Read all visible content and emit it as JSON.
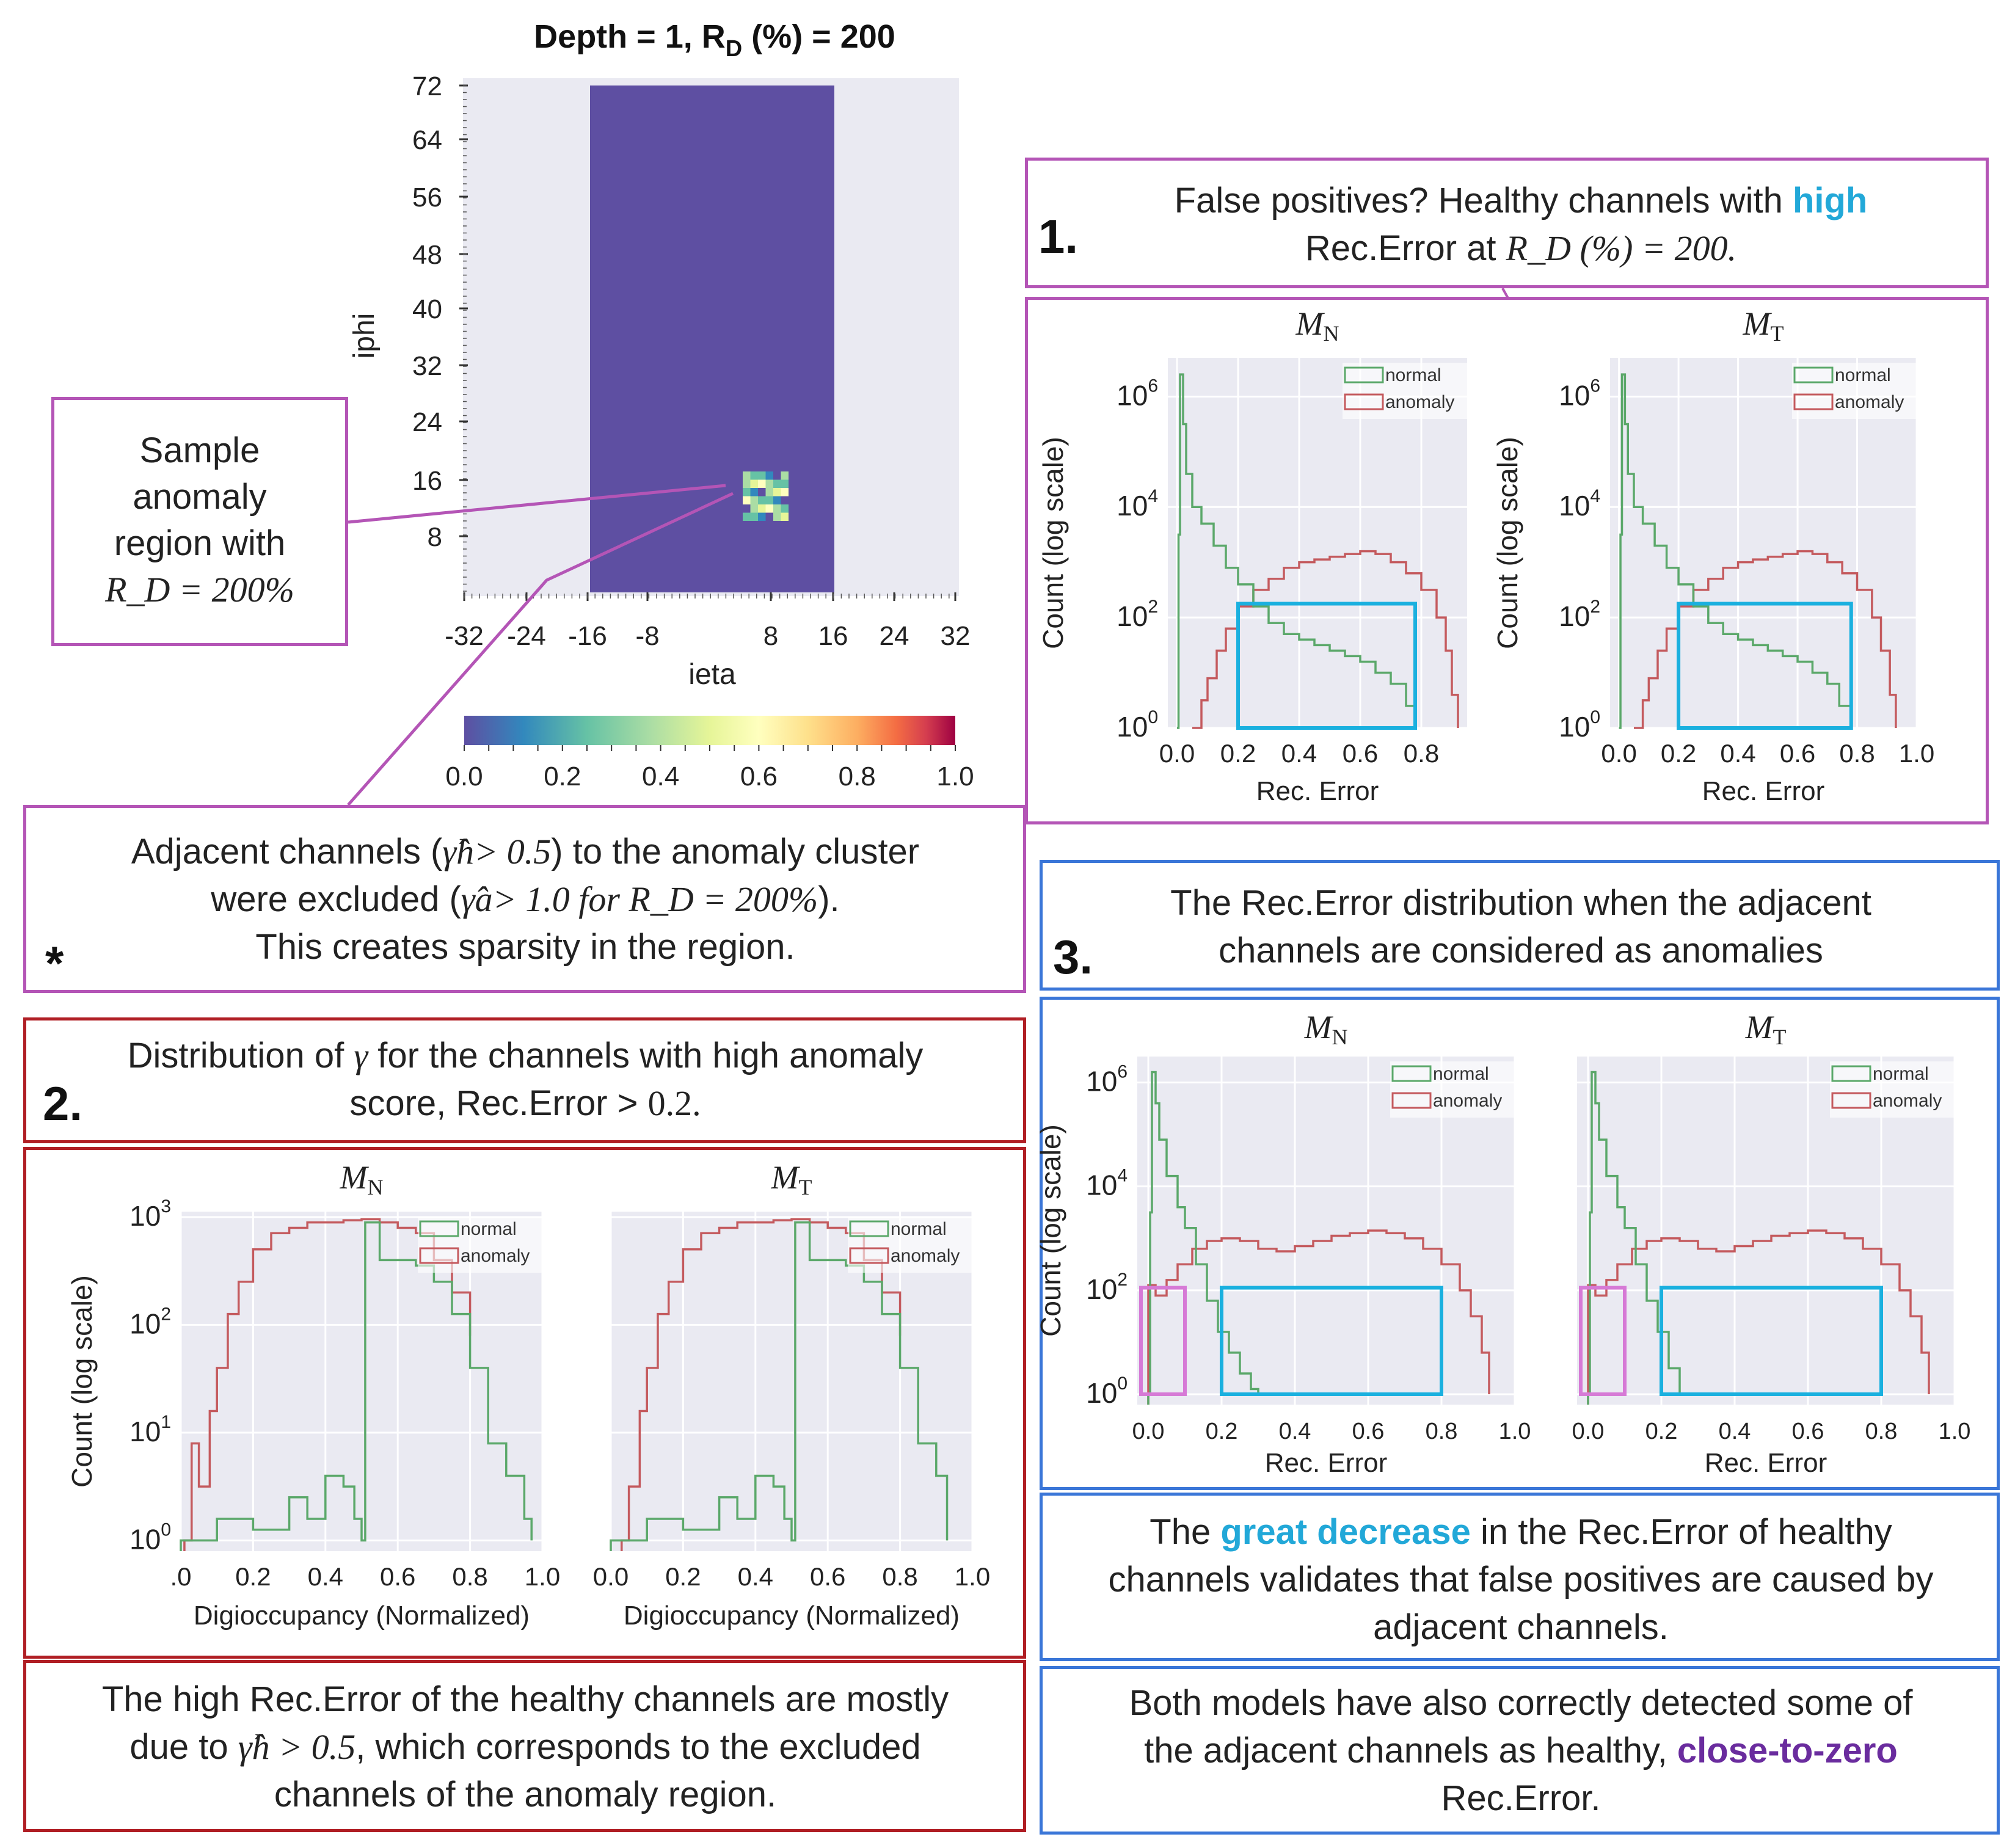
{
  "heatmap": {
    "title": "Depth = 1,  R",
    "title_sub": "D",
    "title_tail": " (%) = 200",
    "ylabel": "iphi",
    "xlabel": "ieta",
    "yticks": [
      "72",
      "64",
      "56",
      "48",
      "40",
      "32",
      "24",
      "16",
      "8"
    ],
    "xticks": [
      "-32",
      "-24",
      "-16",
      "-8",
      "8",
      "16",
      "24",
      "32"
    ],
    "colorbar_ticks": [
      "0.0",
      "0.2",
      "0.4",
      "0.6",
      "0.8",
      "1.0"
    ],
    "fill_color": "#5e4fa2"
  },
  "callout_sample": {
    "line1": "Sample",
    "line2": "anomaly",
    "line3": "region with",
    "line4": "R_D = 200%"
  },
  "note_star": {
    "symbol": "*",
    "line1a": "Adjacent channels (",
    "line1b": "γ̂h> 0.5",
    "line1c": ") to the anomaly cluster",
    "line2a": "were excluded (",
    "line2b": "γ̂a> 1.0 for R_D = 200%",
    "line2c": ").",
    "line3": "This creates sparsity in the region."
  },
  "section1": {
    "number": "1.",
    "line1a": "False positives? Healthy channels with ",
    "line1b": "high",
    "line2a": "Rec.Error at ",
    "line2b": "R_D (%) = 200."
  },
  "section2": {
    "number": "2.",
    "line1a": "Distribution of ",
    "line1b": "γ",
    "line1c": " for the channels with high anomaly",
    "line2a": "score, Rec.Error > ",
    "line2b": "0.2."
  },
  "section3": {
    "number": "3.",
    "line1": "The Rec.Error distribution when the adjacent",
    "line2": "channels are considered as anomalies"
  },
  "conclusion2": {
    "line1": "The high Rec.Error of the healthy channels are mostly",
    "line2a": "due to ",
    "line2b": "γ̂h > 0.5",
    "line2c": ", which corresponds to the excluded",
    "line3": "channels of the anomaly region."
  },
  "conclusion3a": {
    "line1a": "The ",
    "line1b": "great decrease",
    "line1c": " in the Rec.Error of healthy",
    "line2": "channels validates that false positives are caused by",
    "line3": "adjacent channels."
  },
  "conclusion3b": {
    "line1": "Both models have also correctly detected some of",
    "line2a": "the adjacent channels as healthy, ",
    "line2b": "close-to-zero",
    "line3": "Rec.Error."
  },
  "chart_data": [
    {
      "id": "s1N",
      "type": "histogram",
      "title": "M_N",
      "xlabel": "Rec. Error",
      "ylabel": "Count (log scale)",
      "xticks": [
        "0.0",
        "0.2",
        "0.4",
        "0.6",
        "0.8"
      ],
      "yticks": [
        "10^0",
        "10^2",
        "10^4",
        "10^6"
      ],
      "xlim": [
        -0.03,
        0.95
      ],
      "ylog": [
        0,
        6.7
      ],
      "legend": [
        "normal",
        "anomaly"
      ],
      "normal": {
        "x": [
          0.0,
          0.005,
          0.01,
          0.02,
          0.03,
          0.05,
          0.08,
          0.12,
          0.16,
          0.2,
          0.25,
          0.3,
          0.35,
          0.4,
          0.45,
          0.5,
          0.55,
          0.6,
          0.65,
          0.7,
          0.75,
          0.78
        ],
        "y": [
          0,
          3.5,
          6.4,
          5.5,
          4.6,
          4.0,
          3.7,
          3.3,
          2.9,
          2.6,
          2.2,
          1.9,
          1.7,
          1.6,
          1.5,
          1.4,
          1.3,
          1.2,
          1.0,
          0.8,
          0.4,
          0
        ]
      },
      "anomaly": {
        "x": [
          0.05,
          0.08,
          0.1,
          0.13,
          0.16,
          0.2,
          0.25,
          0.3,
          0.35,
          0.4,
          0.45,
          0.5,
          0.55,
          0.6,
          0.65,
          0.7,
          0.75,
          0.8,
          0.85,
          0.88,
          0.9,
          0.92
        ],
        "y": [
          0,
          0.5,
          0.9,
          1.4,
          1.8,
          2.2,
          2.5,
          2.7,
          2.9,
          3.0,
          3.05,
          3.1,
          3.15,
          3.2,
          3.15,
          3.0,
          2.8,
          2.5,
          2.0,
          1.4,
          0.6,
          0
        ]
      },
      "boxes": [
        {
          "x0": 0.2,
          "x1": 0.78,
          "y0": 0,
          "y1": 2.25,
          "color": "#1ab0df"
        }
      ]
    },
    {
      "id": "s1T",
      "type": "histogram",
      "title": "M_T",
      "xlabel": "Rec. Error",
      "ylabel": "Count (log scale)",
      "xticks": [
        "0.0",
        "0.2",
        "0.4",
        "0.6",
        "0.8",
        "1.0"
      ],
      "yticks": [
        "10^0",
        "10^2",
        "10^4",
        "10^6"
      ],
      "xlim": [
        -0.03,
        1.0
      ],
      "ylog": [
        0,
        6.7
      ],
      "legend": [
        "normal",
        "anomaly"
      ],
      "normal": {
        "x": [
          0.0,
          0.005,
          0.01,
          0.02,
          0.03,
          0.05,
          0.08,
          0.12,
          0.16,
          0.2,
          0.25,
          0.3,
          0.35,
          0.4,
          0.45,
          0.5,
          0.55,
          0.6,
          0.65,
          0.7,
          0.74,
          0.78
        ],
        "y": [
          0,
          3.5,
          6.4,
          5.5,
          4.6,
          4.0,
          3.7,
          3.3,
          2.9,
          2.6,
          2.2,
          1.9,
          1.7,
          1.6,
          1.5,
          1.4,
          1.3,
          1.2,
          1.0,
          0.8,
          0.4,
          0
        ]
      },
      "anomaly": {
        "x": [
          0.05,
          0.08,
          0.1,
          0.13,
          0.16,
          0.2,
          0.25,
          0.3,
          0.35,
          0.4,
          0.45,
          0.5,
          0.55,
          0.6,
          0.65,
          0.7,
          0.75,
          0.8,
          0.85,
          0.88,
          0.91,
          0.93
        ],
        "y": [
          0,
          0.5,
          0.9,
          1.4,
          1.8,
          2.2,
          2.5,
          2.7,
          2.9,
          3.0,
          3.05,
          3.1,
          3.15,
          3.2,
          3.15,
          3.0,
          2.8,
          2.5,
          2.0,
          1.4,
          0.6,
          0
        ]
      },
      "boxes": [
        {
          "x0": 0.2,
          "x1": 0.78,
          "y0": 0,
          "y1": 2.25,
          "color": "#1ab0df"
        }
      ]
    },
    {
      "id": "s2N",
      "type": "histogram",
      "title": "M_N",
      "xlabel": "Digioccupancy (Normalized)",
      "ylabel": "Count (log scale)",
      "xticks": [
        ".0",
        "0.2",
        "0.4",
        "0.6",
        "0.8",
        "1.0"
      ],
      "yticks": [
        "10^0",
        "10^1",
        "10^2",
        "10^3"
      ],
      "xlim": [
        0,
        1.0
      ],
      "ylog": [
        -0.1,
        3.05
      ],
      "legend": [
        "normal",
        "anomaly"
      ],
      "normal": {
        "x": [
          0.0,
          0.1,
          0.2,
          0.3,
          0.35,
          0.4,
          0.45,
          0.48,
          0.5,
          0.51,
          0.55,
          0.6,
          0.65,
          0.7,
          0.75,
          0.8,
          0.85,
          0.9,
          0.95,
          0.97
        ],
        "y": [
          0,
          0.2,
          0.1,
          0.4,
          0.2,
          0.6,
          0.5,
          0.2,
          0.0,
          2.95,
          2.6,
          2.6,
          2.55,
          2.4,
          2.1,
          1.6,
          0.9,
          0.6,
          0.2,
          0
        ]
      },
      "anomaly": {
        "x": [
          0.01,
          0.03,
          0.05,
          0.08,
          0.1,
          0.13,
          0.16,
          0.2,
          0.25,
          0.3,
          0.35,
          0.4,
          0.45,
          0.5,
          0.55,
          0.6,
          0.65,
          0.7,
          0.75,
          0.8
        ],
        "y": [
          0,
          0.9,
          0.5,
          1.2,
          1.6,
          2.1,
          2.4,
          2.7,
          2.85,
          2.9,
          2.95,
          2.95,
          2.97,
          2.98,
          2.95,
          2.9,
          2.85,
          2.6,
          2.3,
          1.9
        ]
      }
    },
    {
      "id": "s2T",
      "type": "histogram",
      "title": "M_T",
      "xlabel": "Digioccupancy (Normalized)",
      "ylabel": "",
      "xticks": [
        "0.0",
        "0.2",
        "0.4",
        "0.6",
        "0.8",
        "1.0"
      ],
      "yticks": [],
      "xlim": [
        0,
        1.0
      ],
      "ylog": [
        -0.1,
        3.05
      ],
      "legend": [
        "normal",
        "anomaly"
      ],
      "normal": {
        "x": [
          0.0,
          0.1,
          0.2,
          0.3,
          0.35,
          0.4,
          0.45,
          0.48,
          0.5,
          0.51,
          0.55,
          0.6,
          0.65,
          0.7,
          0.75,
          0.8,
          0.85,
          0.9,
          0.93
        ],
        "y": [
          0,
          0.2,
          0.1,
          0.4,
          0.2,
          0.6,
          0.5,
          0.2,
          0.0,
          2.95,
          2.6,
          2.6,
          2.55,
          2.4,
          2.1,
          1.6,
          0.9,
          0.6,
          0
        ]
      },
      "anomaly": {
        "x": [
          0.03,
          0.05,
          0.08,
          0.1,
          0.13,
          0.16,
          0.2,
          0.25,
          0.3,
          0.35,
          0.4,
          0.45,
          0.5,
          0.55,
          0.6,
          0.65,
          0.7,
          0.75,
          0.8
        ],
        "y": [
          0,
          0.5,
          1.2,
          1.6,
          2.1,
          2.4,
          2.7,
          2.85,
          2.9,
          2.95,
          2.95,
          2.97,
          2.98,
          2.95,
          2.9,
          2.85,
          2.6,
          2.3,
          1.9
        ]
      }
    },
    {
      "id": "s3N",
      "type": "histogram",
      "title": "M_N",
      "xlabel": "Rec. Error",
      "ylabel": "Count (log scale)",
      "xticks": [
        "0.0",
        "0.2",
        "0.4",
        "0.6",
        "0.8",
        "1.0"
      ],
      "yticks": [
        "10^0",
        "10^2",
        "10^4",
        "10^6"
      ],
      "xlim": [
        -0.03,
        1.0
      ],
      "ylog": [
        -0.2,
        6.5
      ],
      "legend": [
        "normal",
        "anomaly"
      ],
      "normal": {
        "x": [
          0.0,
          0.005,
          0.01,
          0.02,
          0.03,
          0.05,
          0.08,
          0.1,
          0.13,
          0.16,
          0.19,
          0.22,
          0.25,
          0.28,
          0.3
        ],
        "y": [
          0,
          3.5,
          6.2,
          5.6,
          4.9,
          4.2,
          3.6,
          3.2,
          2.5,
          1.8,
          1.2,
          0.8,
          0.4,
          0.1,
          0
        ]
      },
      "anomaly": {
        "x": [
          0.0,
          0.02,
          0.05,
          0.08,
          0.12,
          0.16,
          0.2,
          0.25,
          0.3,
          0.35,
          0.4,
          0.45,
          0.5,
          0.55,
          0.6,
          0.65,
          0.7,
          0.75,
          0.8,
          0.85,
          0.88,
          0.91,
          0.93
        ],
        "y": [
          2.1,
          1.9,
          2.2,
          2.5,
          2.8,
          2.95,
          3.0,
          2.95,
          2.8,
          2.75,
          2.85,
          2.95,
          3.05,
          3.1,
          3.15,
          3.1,
          3.0,
          2.8,
          2.5,
          2.0,
          1.5,
          0.8,
          0
        ]
      },
      "boxes": [
        {
          "x0": 0.2,
          "x1": 0.8,
          "y0": 0,
          "y1": 2.05,
          "color": "#1ab0df"
        },
        {
          "x0": -0.02,
          "x1": 0.1,
          "y0": 0,
          "y1": 2.05,
          "color": "#d67ad6"
        }
      ]
    },
    {
      "id": "s3T",
      "type": "histogram",
      "title": "M_T",
      "xlabel": "Rec. Error",
      "ylabel": "",
      "xticks": [
        "0.0",
        "0.2",
        "0.4",
        "0.6",
        "0.8",
        "1.0"
      ],
      "yticks": [],
      "xlim": [
        -0.03,
        1.0
      ],
      "ylog": [
        -0.2,
        6.5
      ],
      "legend": [
        "normal",
        "anomaly"
      ],
      "normal": {
        "x": [
          0.0,
          0.005,
          0.01,
          0.02,
          0.03,
          0.05,
          0.08,
          0.1,
          0.13,
          0.16,
          0.19,
          0.22,
          0.25
        ],
        "y": [
          0,
          3.5,
          6.2,
          5.6,
          4.9,
          4.2,
          3.6,
          3.2,
          2.5,
          1.8,
          1.2,
          0.5,
          0
        ]
      },
      "anomaly": {
        "x": [
          0.0,
          0.02,
          0.05,
          0.08,
          0.12,
          0.16,
          0.2,
          0.25,
          0.3,
          0.35,
          0.4,
          0.45,
          0.5,
          0.55,
          0.6,
          0.65,
          0.7,
          0.75,
          0.8,
          0.85,
          0.88,
          0.91,
          0.93
        ],
        "y": [
          2.1,
          1.9,
          2.2,
          2.5,
          2.8,
          2.95,
          3.0,
          2.95,
          2.8,
          2.75,
          2.85,
          2.95,
          3.05,
          3.1,
          3.15,
          3.1,
          3.0,
          2.8,
          2.5,
          2.0,
          1.5,
          0.8,
          0
        ]
      },
      "boxes": [
        {
          "x0": 0.2,
          "x1": 0.8,
          "y0": 0,
          "y1": 2.05,
          "color": "#1ab0df"
        },
        {
          "x0": -0.02,
          "x1": 0.1,
          "y0": 0,
          "y1": 2.05,
          "color": "#d67ad6"
        }
      ]
    }
  ]
}
